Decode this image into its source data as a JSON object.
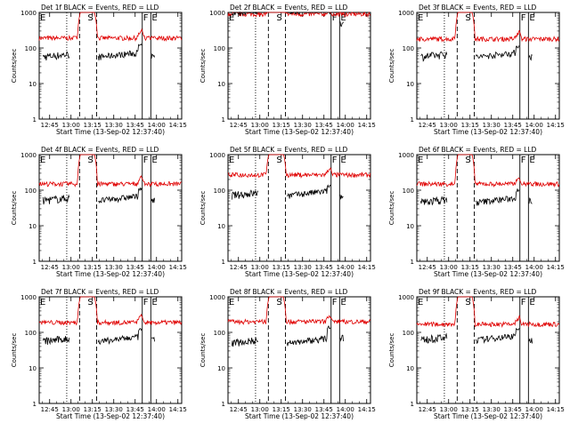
{
  "figure": {
    "series_colors": {
      "events": "#000000",
      "lld": "#e00000"
    },
    "panels": [
      {
        "title": "Det 1f BLACK = Events, RED = LLD",
        "events_level": 55,
        "lld_level": 190,
        "lld_peak": 1000,
        "events_end": 120
      },
      {
        "title": "Det 2f BLACK = Events, RED = LLD",
        "events_level": 1000,
        "lld_level": 900,
        "lld_peak": 1300,
        "events_end": 1000
      },
      {
        "title": "Det 3f BLACK = Events, RED = LLD",
        "events_level": 55,
        "lld_level": 180,
        "lld_peak": 1000,
        "events_end": 110
      },
      {
        "title": "Det 4f BLACK = Events, RED = LLD",
        "events_level": 50,
        "lld_level": 150,
        "lld_peak": 1000,
        "events_end": 110
      },
      {
        "title": "Det 5f BLACK = Events, RED = LLD",
        "events_level": 70,
        "lld_level": 270,
        "lld_peak": 1100,
        "events_end": 130
      },
      {
        "title": "Det 6f BLACK = Events, RED = LLD",
        "events_level": 45,
        "lld_level": 150,
        "lld_peak": 1000,
        "events_end": 100
      },
      {
        "title": "Det 7f BLACK = Events, RED = LLD",
        "events_level": 55,
        "lld_level": 190,
        "lld_peak": 1000,
        "events_end": 120
      },
      {
        "title": "Det 8f BLACK = Events, RED = LLD",
        "events_level": 50,
        "lld_level": 200,
        "lld_peak": 1000,
        "events_end": 140
      },
      {
        "title": "Det 9f BLACK = Events, RED = LLD",
        "events_level": 60,
        "lld_level": 170,
        "lld_peak": 1000,
        "events_end": 120
      }
    ]
  },
  "chart_data": {
    "type": "line",
    "grid": "3x3 small multiples",
    "xlabel": "Start Time (13-Sep-02 12:37:40)",
    "ylabel": "Counts/sec",
    "x_tick_labels": [
      "12:45",
      "13:00",
      "13:15",
      "13:30",
      "13:45",
      "14:00",
      "14:15"
    ],
    "y_tick_labels": [
      "1",
      "10",
      "100",
      "1000"
    ],
    "ylim": [
      1,
      1000
    ],
    "y_scale": "log",
    "series": [
      {
        "name": "Events",
        "color": "black"
      },
      {
        "name": "LLD",
        "color": "red"
      }
    ],
    "markers": [
      {
        "label": "E",
        "time": "12:37:40",
        "style": "solid"
      },
      {
        "label": "",
        "time": "12:57",
        "style": "dotted"
      },
      {
        "label": "",
        "time": "13:06",
        "style": "dashed"
      },
      {
        "label": "S",
        "time": "13:11",
        "style": "none"
      },
      {
        "label": "",
        "time": "13:18",
        "style": "dashed"
      },
      {
        "label": "F",
        "time": "13:50",
        "style": "solid"
      },
      {
        "label": "E",
        "time": "13:56",
        "style": "solid"
      }
    ]
  }
}
